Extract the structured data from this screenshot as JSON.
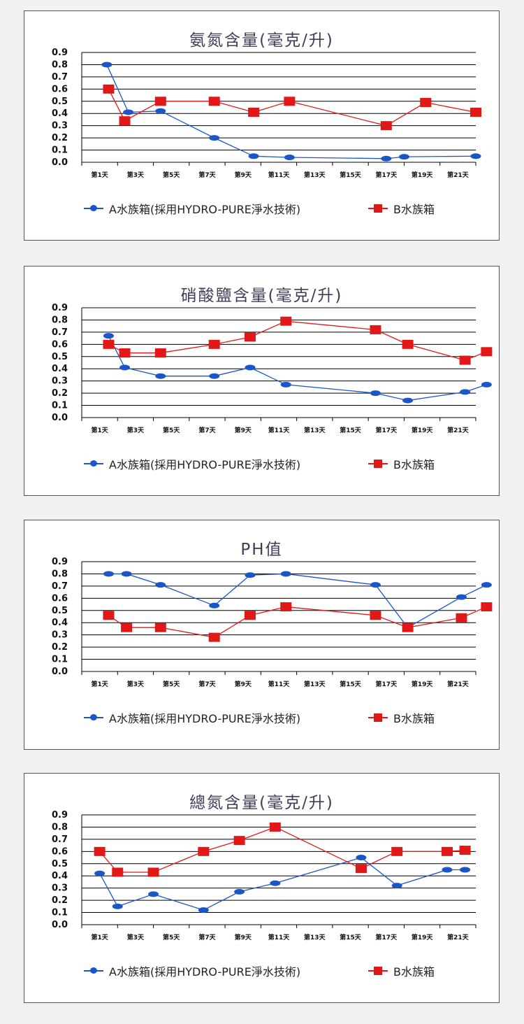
{
  "legend": {
    "a": "A水族箱(採用HYDRO-PURE淨水技術)",
    "b": "B水族箱"
  },
  "colors": {
    "series_a": "#1a56c7",
    "series_b": "#e21818",
    "grid": "#000000"
  },
  "chart_data": [
    {
      "type": "line",
      "title": "氨氮含量(毫克/升)",
      "ylim": [
        0,
        0.9
      ],
      "yticks": [
        "0.0",
        "0.1",
        "0.2",
        "0.3",
        "0.4",
        "0.5",
        "0.6",
        "0.7",
        "0.8",
        "0.9"
      ],
      "categories": [
        "第1天",
        "第3天",
        "第5天",
        "第7天",
        "第9天",
        "第11天",
        "第13天",
        "第15天",
        "第17天",
        "第19天",
        "第21天"
      ],
      "series": [
        {
          "name": "A水族箱(採用HYDRO-PURE淨水技術)",
          "marker": "circle",
          "points": [
            [
              0.2,
              0.8
            ],
            [
              0.8,
              0.41
            ],
            [
              1.7,
              0.42
            ],
            [
              3.2,
              0.2
            ],
            [
              4.3,
              0.05
            ],
            [
              5.3,
              0.04
            ],
            [
              8.0,
              0.03
            ],
            [
              8.5,
              0.045
            ],
            [
              10.5,
              0.05
            ]
          ]
        },
        {
          "name": "B水族箱",
          "marker": "square",
          "points": [
            [
              0.25,
              0.6
            ],
            [
              0.7,
              0.34
            ],
            [
              1.7,
              0.5
            ],
            [
              3.2,
              0.5
            ],
            [
              4.3,
              0.41
            ],
            [
              5.3,
              0.5
            ],
            [
              8.0,
              0.3
            ],
            [
              9.1,
              0.49
            ],
            [
              10.5,
              0.41
            ]
          ]
        }
      ]
    },
    {
      "type": "line",
      "title": "硝酸鹽含量(毫克/升)",
      "ylim": [
        0,
        0.9
      ],
      "yticks": [
        "0.0",
        "0.1",
        "0.2",
        "0.3",
        "0.4",
        "0.5",
        "0.6",
        "0.7",
        "0.8",
        "0.9"
      ],
      "categories": [
        "第1天",
        "第3天",
        "第5天",
        "第7天",
        "第9天",
        "第11天",
        "第13天",
        "第15天",
        "第17天",
        "第19天",
        "第21天"
      ],
      "series": [
        {
          "name": "A水族箱(採用HYDRO-PURE淨水技術)",
          "marker": "circle",
          "points": [
            [
              0.25,
              0.67
            ],
            [
              0.7,
              0.41
            ],
            [
              1.7,
              0.34
            ],
            [
              3.2,
              0.34
            ],
            [
              4.2,
              0.41
            ],
            [
              5.2,
              0.27
            ],
            [
              7.7,
              0.2
            ],
            [
              8.6,
              0.14
            ],
            [
              10.2,
              0.21
            ],
            [
              10.8,
              0.27
            ]
          ]
        },
        {
          "name": "B水族箱",
          "marker": "square",
          "points": [
            [
              0.25,
              0.6
            ],
            [
              0.7,
              0.53
            ],
            [
              1.7,
              0.53
            ],
            [
              3.2,
              0.6
            ],
            [
              4.2,
              0.66
            ],
            [
              5.2,
              0.79
            ],
            [
              7.7,
              0.72
            ],
            [
              8.6,
              0.6
            ],
            [
              10.2,
              0.47
            ],
            [
              10.8,
              0.54
            ]
          ]
        }
      ]
    },
    {
      "type": "line",
      "title": "PH值",
      "ylim": [
        0,
        0.9
      ],
      "yticks": [
        "0.0",
        "0.1",
        "0.2",
        "0.3",
        "0.4",
        "0.5",
        "0.6",
        "0.7",
        "0.8",
        "0.9"
      ],
      "categories": [
        "第1天",
        "第3天",
        "第5天",
        "第7天",
        "第9天",
        "第11天",
        "第13天",
        "第15天",
        "第17天",
        "第19天",
        "第21天"
      ],
      "series": [
        {
          "name": "A水族箱(採用HYDRO-PURE淨水技術)",
          "marker": "circle",
          "points": [
            [
              0.25,
              0.8
            ],
            [
              0.75,
              0.8
            ],
            [
              1.7,
              0.71
            ],
            [
              3.2,
              0.54
            ],
            [
              4.2,
              0.79
            ],
            [
              5.2,
              0.8
            ],
            [
              7.7,
              0.71
            ],
            [
              8.6,
              0.36
            ],
            [
              10.1,
              0.61
            ],
            [
              10.8,
              0.71
            ]
          ]
        },
        {
          "name": "B水族箱",
          "marker": "square",
          "points": [
            [
              0.25,
              0.46
            ],
            [
              0.75,
              0.36
            ],
            [
              1.7,
              0.36
            ],
            [
              3.2,
              0.28
            ],
            [
              4.2,
              0.46
            ],
            [
              5.2,
              0.53
            ],
            [
              7.7,
              0.46
            ],
            [
              8.6,
              0.36
            ],
            [
              10.1,
              0.44
            ],
            [
              10.8,
              0.53
            ]
          ]
        }
      ]
    },
    {
      "type": "line",
      "title": "總氮含量(毫克/升)",
      "ylim": [
        0,
        0.9
      ],
      "yticks": [
        "0.0",
        "0.1",
        "0.2",
        "0.3",
        "0.4",
        "0.5",
        "0.6",
        "0.7",
        "0.8",
        "0.9"
      ],
      "categories": [
        "第1天",
        "第3天",
        "第5天",
        "第7天",
        "第9天",
        "第11天",
        "第13天",
        "第15天",
        "第17天",
        "第19天",
        "第21天"
      ],
      "series": [
        {
          "name": "A水族箱(採用HYDRO-PURE淨水技術)",
          "marker": "circle",
          "points": [
            [
              0.0,
              0.42
            ],
            [
              0.5,
              0.15
            ],
            [
              1.5,
              0.25
            ],
            [
              2.9,
              0.12
            ],
            [
              3.9,
              0.27
            ],
            [
              4.9,
              0.34
            ],
            [
              7.3,
              0.55
            ],
            [
              8.3,
              0.32
            ],
            [
              9.7,
              0.45
            ],
            [
              10.2,
              0.45
            ]
          ]
        },
        {
          "name": "B水族箱",
          "marker": "square",
          "points": [
            [
              0.0,
              0.6
            ],
            [
              0.5,
              0.43
            ],
            [
              1.5,
              0.43
            ],
            [
              2.9,
              0.6
            ],
            [
              3.9,
              0.69
            ],
            [
              4.9,
              0.8
            ],
            [
              7.3,
              0.46
            ],
            [
              8.3,
              0.6
            ],
            [
              9.7,
              0.6
            ],
            [
              10.2,
              0.61
            ]
          ]
        }
      ]
    }
  ]
}
